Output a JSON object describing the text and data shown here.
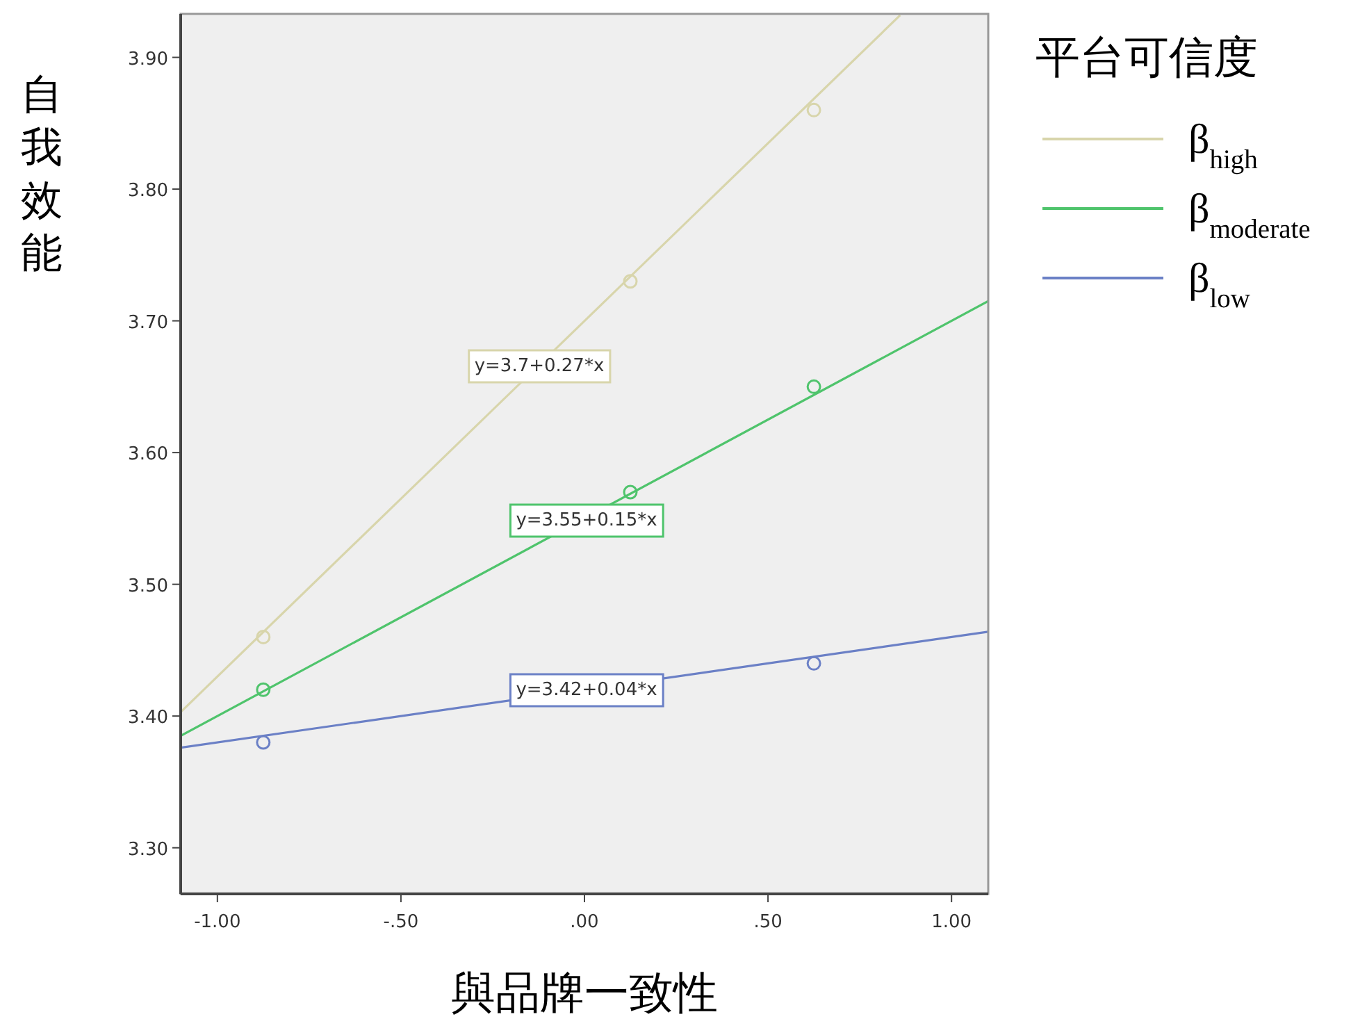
{
  "chart_data": {
    "type": "line",
    "xlabel": "與品牌一致性",
    "ylabel": "自我效能",
    "legend_title": "平台可信度",
    "legend": "right",
    "grid": false,
    "xlim": [
      -1.1,
      1.1
    ],
    "ylim": [
      3.265,
      3.933
    ],
    "xticks": [
      {
        "value": -1,
        "label": "-1.00"
      },
      {
        "value": -0.5,
        "label": "-.50"
      },
      {
        "value": 0,
        "label": ".00"
      },
      {
        "value": 0.5,
        "label": ".50"
      },
      {
        "value": 1,
        "label": "1.00"
      }
    ],
    "yticks": [
      {
        "value": 3.3,
        "label": "3.30"
      },
      {
        "value": 3.4,
        "label": "3.40"
      },
      {
        "value": 3.5,
        "label": "3.50"
      },
      {
        "value": 3.6,
        "label": "3.60"
      },
      {
        "value": 3.7,
        "label": "3.70"
      },
      {
        "value": 3.8,
        "label": "3.80"
      },
      {
        "value": 3.9,
        "label": "3.90"
      }
    ],
    "series": [
      {
        "name": "β$_{high}$",
        "color": "#d8d5ab",
        "x": [
          -1.1,
          0.86
        ],
        "values": [
          3.403,
          3.932
        ]
      },
      {
        "name": "β$_{moderate}$",
        "color": "#4fc46c",
        "x": [
          -1.1,
          1.1
        ],
        "values": [
          3.385,
          3.715
        ]
      },
      {
        "name": "β$_{low}$",
        "color": "#6b80c6",
        "x": [
          -1.1,
          1.1
        ],
        "values": [
          3.376,
          3.464
        ]
      },
      {
        "type": "scatter",
        "color": "#d8d5ab",
        "x": [
          -0.875,
          0.125,
          0.625
        ],
        "values": [
          3.46,
          3.73,
          3.86
        ],
        "marker": "circle"
      },
      {
        "type": "scatter",
        "color": "#4fc46c",
        "x": [
          -0.875,
          0.125,
          0.625
        ],
        "values": [
          3.42,
          3.57,
          3.65
        ],
        "marker": "circle"
      },
      {
        "type": "scatter",
        "color": "#6b80c6",
        "x": [
          -0.875,
          0.625
        ],
        "values": [
          3.38,
          3.44
        ],
        "marker": "circle"
      }
    ],
    "annotations": [
      "y=3.7+0.27*x",
      "y=3.55+0.15*x",
      "y=3.42+0.04*x"
    ]
  }
}
